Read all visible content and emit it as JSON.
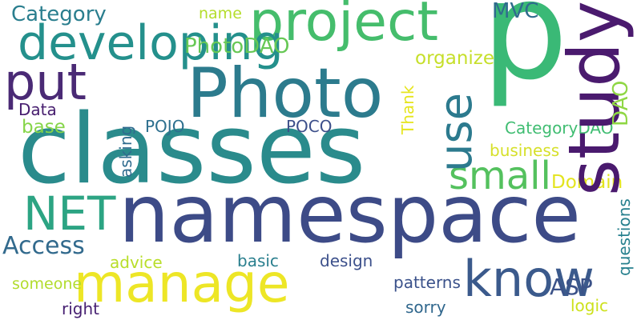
{
  "palette": {
    "background": "#ffffff",
    "dark_purple": "#440154",
    "indigo": "#3e4a89",
    "steel_blue": "#31688e",
    "teal": "#26828e",
    "green_teal": "#1f9e89",
    "green": "#35b779",
    "lime": "#6ece58",
    "yellow_green": "#b5de2b",
    "yellow": "#e8e419"
  },
  "words": [
    {
      "text": "p",
      "color": "#3ab976"
    },
    {
      "text": "classes",
      "color": "#2a8b8c"
    },
    {
      "text": "namespace",
      "color": "#3d4b87"
    },
    {
      "text": "Photo",
      "color": "#2c7b8d"
    },
    {
      "text": "project",
      "color": "#45bd6c"
    },
    {
      "text": "put",
      "color": "#4a1a6e"
    },
    {
      "text": "manage",
      "color": "#4a2a75"
    },
    {
      "text": "developing",
      "color": "#ede626"
    },
    {
      "text": "small",
      "color": "#24908c"
    },
    {
      "text": "NET",
      "color": "#2c7a8e"
    },
    {
      "text": "know",
      "color": "#54c15e"
    },
    {
      "text": "ASP",
      "color": "#2ca483"
    },
    {
      "text": "MVC",
      "color": "#3b5a8c"
    },
    {
      "text": "Access",
      "color": "#3b5288"
    },
    {
      "text": "Category",
      "color": "#2f6b8d"
    },
    {
      "text": "PhotoDAO",
      "color": "#8fd744"
    },
    {
      "text": "organize",
      "color": "#326a8d"
    },
    {
      "text": "Domain",
      "color": "#2a7e8e"
    },
    {
      "text": "base",
      "color": "#67c855"
    },
    {
      "text": "POJO",
      "color": "#e3e41e"
    },
    {
      "text": "POCO",
      "color": "#c6df2a"
    },
    {
      "text": "Data",
      "color": "#86d549"
    },
    {
      "text": "CategoryDAO",
      "color": "#2d6f8e"
    },
    {
      "text": "business",
      "color": "#3c4f8a"
    },
    {
      "text": "advice",
      "color": "#461d6e"
    },
    {
      "text": "basic",
      "color": "#40bd72"
    },
    {
      "text": "design",
      "color": "#d6e02a"
    },
    {
      "text": "patterns",
      "color": "#b8de29"
    },
    {
      "text": "sorry",
      "color": "#2a7f8e"
    },
    {
      "text": "right",
      "color": "#3c508b"
    },
    {
      "text": "logic",
      "color": "#3b528b"
    },
    {
      "text": "someone",
      "color": "#30678d"
    },
    {
      "text": "name",
      "color": "#461f71"
    },
    {
      "text": "study",
      "color": "#cde11d"
    },
    {
      "text": "use",
      "color": "#b2dc2d"
    },
    {
      "text": "DAO",
      "color": "#b4dd2b"
    },
    {
      "text": "Thank",
      "color": "#e6e51e"
    },
    {
      "text": "asking",
      "color": "#2f6b8e"
    },
    {
      "text": "questions",
      "color": "#27808e"
    }
  ]
}
